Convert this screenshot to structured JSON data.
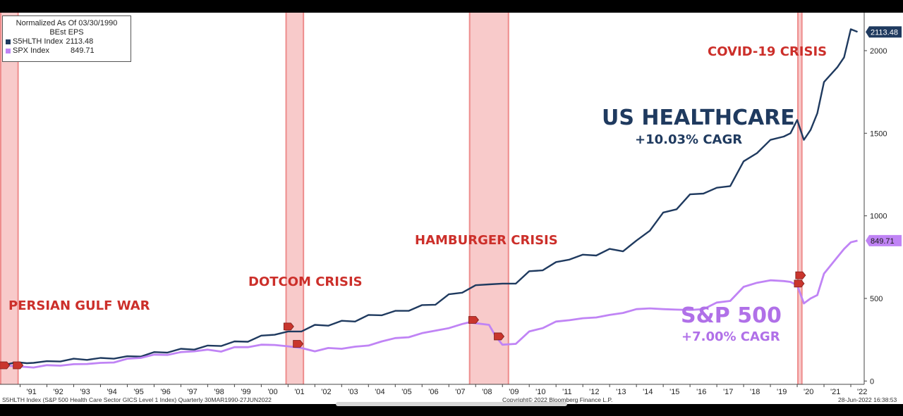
{
  "legend": {
    "title_line1": "Normalized As Of 03/30/1990",
    "title_line2": "BEst EPS",
    "items": [
      {
        "label": "S5HLTH Index",
        "value": "2113.48",
        "color": "#1f3a5f"
      },
      {
        "label": "SPX Index",
        "value": "849.71",
        "color": "#c084f5"
      }
    ]
  },
  "annotations": {
    "persian": "PERSIAN GULF WAR",
    "dotcom": "DOTCOM CRISIS",
    "hamburger": "HAMBURGER CRISIS",
    "covid": "COVID-19 CRISIS",
    "healthcare_title": "US HEALTHCARE",
    "healthcare_cagr": "+10.03% CAGR",
    "sp_title": "S&P 500",
    "sp_cagr": "+7.00% CAGR"
  },
  "footer": {
    "left": "S5HLTH Index (S&P 500 Health Care Sector GICS Level 1 Index)  Quarterly 30MAR1990-27JUN2022",
    "center": "Copyright© 2022 Bloomberg Finance L.P.",
    "right": "28-Jun-2022 16:38:53"
  },
  "chart_data": {
    "type": "line",
    "x_ticks": [
      "'91",
      "'92",
      "'93",
      "'94",
      "'95",
      "'96",
      "'97",
      "'98",
      "'99",
      "'00",
      "'01",
      "'02",
      "'03",
      "'04",
      "'05",
      "'06",
      "'07",
      "'08",
      "'09",
      "'10",
      "'11",
      "'12",
      "'13",
      "'14",
      "'15",
      "'16",
      "'17",
      "'18",
      "'19",
      "'20",
      "'21",
      "'22"
    ],
    "y_ticks": [
      0,
      500,
      1000,
      1500,
      2000
    ],
    "ylim": [
      -20,
      2230
    ],
    "xlim": [
      1990.25,
      2022.5
    ],
    "shaded_periods": [
      [
        1990.25,
        1990.95
      ],
      [
        2000.9,
        2001.6
      ],
      [
        2007.75,
        2009.25
      ],
      [
        2020.0,
        2020.2
      ]
    ],
    "last_value_labels": [
      {
        "series": "S5HLTH Index",
        "text": "2113.48"
      },
      {
        "series": "SPX Index",
        "text": "849.71"
      }
    ],
    "series": [
      {
        "name": "S5HLTH Index",
        "color": "#1f3a5f",
        "x": [
          1990.25,
          1990.5,
          1990.75,
          1991.0,
          1991.25,
          1991.5,
          1992.0,
          1992.5,
          1993.0,
          1993.5,
          1994.0,
          1994.5,
          1995.0,
          1995.5,
          1996.0,
          1996.5,
          1997.0,
          1997.5,
          1998.0,
          1998.5,
          1999.0,
          1999.5,
          2000.0,
          2000.5,
          2001.0,
          2001.5,
          2002.0,
          2002.5,
          2003.0,
          2003.5,
          2004.0,
          2004.5,
          2005.0,
          2005.5,
          2006.0,
          2006.5,
          2007.0,
          2007.5,
          2008.0,
          2008.5,
          2009.0,
          2009.5,
          2010.0,
          2010.5,
          2011.0,
          2011.5,
          2012.0,
          2012.5,
          2013.0,
          2013.5,
          2014.0,
          2014.5,
          2015.0,
          2015.5,
          2016.0,
          2016.5,
          2017.0,
          2017.5,
          2018.0,
          2018.5,
          2019.0,
          2019.5,
          2019.75,
          2020.0,
          2020.25,
          2020.5,
          2020.75,
          2021.0,
          2021.5,
          2021.75,
          2022.0,
          2022.25
        ],
        "values": [
          100,
          100,
          110,
          112,
          108,
          110,
          120,
          118,
          135,
          128,
          140,
          135,
          150,
          148,
          175,
          172,
          195,
          190,
          215,
          212,
          240,
          238,
          275,
          280,
          300,
          300,
          340,
          335,
          365,
          360,
          400,
          398,
          425,
          425,
          460,
          462,
          525,
          535,
          580,
          585,
          590,
          590,
          665,
          670,
          720,
          735,
          765,
          760,
          800,
          785,
          850,
          910,
          1020,
          1040,
          1130,
          1135,
          1170,
          1180,
          1330,
          1380,
          1460,
          1480,
          1500,
          1580,
          1460,
          1520,
          1620,
          1810,
          1900,
          1960,
          2130,
          2113.48
        ]
      },
      {
        "name": "SPX Index",
        "color": "#c084f5",
        "x": [
          1990.25,
          1990.5,
          1990.75,
          1991.0,
          1991.5,
          1992.0,
          1992.5,
          1993.0,
          1993.5,
          1994.0,
          1994.5,
          1995.0,
          1995.5,
          1996.0,
          1996.5,
          1997.0,
          1997.5,
          1998.0,
          1998.5,
          1999.0,
          1999.5,
          2000.0,
          2000.5,
          2001.0,
          2001.5,
          2002.0,
          2002.5,
          2003.0,
          2003.5,
          2004.0,
          2004.5,
          2005.0,
          2005.5,
          2006.0,
          2006.5,
          2007.0,
          2007.5,
          2007.75,
          2008.0,
          2008.5,
          2008.75,
          2009.0,
          2009.5,
          2010.0,
          2010.5,
          2011.0,
          2011.5,
          2012.0,
          2012.5,
          2013.0,
          2013.5,
          2014.0,
          2014.5,
          2015.0,
          2015.5,
          2016.0,
          2016.5,
          2017.0,
          2017.5,
          2018.0,
          2018.5,
          2019.0,
          2019.5,
          2019.75,
          2020.0,
          2020.25,
          2020.5,
          2020.75,
          2021.0,
          2021.5,
          2021.75,
          2022.0,
          2022.25
        ],
        "values": [
          100,
          95,
          90,
          88,
          82,
          96,
          93,
          102,
          103,
          110,
          112,
          135,
          140,
          160,
          158,
          175,
          180,
          190,
          178,
          205,
          205,
          220,
          218,
          210,
          200,
          180,
          200,
          195,
          208,
          215,
          240,
          260,
          265,
          290,
          305,
          320,
          345,
          355,
          350,
          340,
          270,
          220,
          225,
          300,
          320,
          360,
          368,
          380,
          385,
          400,
          412,
          435,
          440,
          435,
          432,
          430,
          435,
          475,
          485,
          570,
          595,
          610,
          605,
          600,
          580,
          470,
          500,
          520,
          650,
          750,
          800,
          840,
          849.71
        ]
      }
    ]
  }
}
